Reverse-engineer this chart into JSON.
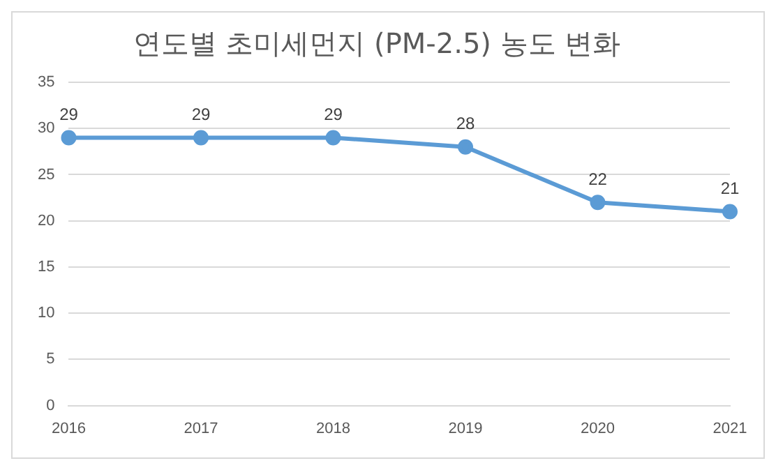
{
  "chart_data": {
    "type": "line",
    "title": "연도별 초미세먼지 (PM-2.5) 농도 변화",
    "categories": [
      "2016",
      "2017",
      "2018",
      "2019",
      "2020",
      "2021"
    ],
    "series": [
      {
        "color": "#5b9bd5",
        "values": [
          29,
          29,
          29,
          28,
          22,
          21
        ]
      }
    ],
    "ylim": [
      0,
      35
    ],
    "yticks": [
      0,
      5,
      10,
      15,
      20,
      25,
      30,
      35
    ],
    "grid": "y",
    "legend": false,
    "marker": "circle",
    "line_style": "solid",
    "data_labels": true
  }
}
